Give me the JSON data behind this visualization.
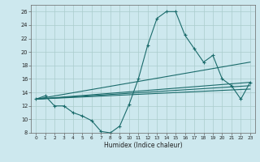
{
  "xlabel": "Humidex (Indice chaleur)",
  "xlim": [
    -0.5,
    23.5
  ],
  "ylim": [
    8,
    27
  ],
  "yticks": [
    8,
    10,
    12,
    14,
    16,
    18,
    20,
    22,
    24,
    26
  ],
  "xticks": [
    0,
    1,
    2,
    3,
    4,
    5,
    6,
    7,
    8,
    9,
    10,
    11,
    12,
    13,
    14,
    15,
    16,
    17,
    18,
    19,
    20,
    21,
    22,
    23
  ],
  "bg_color": "#cde8ee",
  "grid_color": "#aacccc",
  "line_color": "#1a6b6b",
  "line1_x": [
    0,
    1,
    2,
    3,
    4,
    5,
    6,
    7,
    8,
    9,
    10,
    11,
    12,
    13,
    14,
    15,
    16,
    17,
    18,
    19,
    20,
    21,
    22,
    23
  ],
  "line1_y": [
    13.0,
    13.5,
    12.0,
    12.0,
    11.0,
    10.5,
    9.8,
    8.2,
    8.0,
    9.0,
    12.2,
    16.0,
    21.0,
    25.0,
    26.0,
    26.0,
    22.5,
    20.5,
    18.5,
    19.5,
    16.0,
    15.0,
    13.0,
    15.5
  ],
  "line2_x": [
    0,
    23
  ],
  "line2_y": [
    13.0,
    18.5
  ],
  "line3_x": [
    0,
    23
  ],
  "line3_y": [
    13.0,
    15.5
  ],
  "line4_x": [
    0,
    23
  ],
  "line4_y": [
    13.0,
    15.0
  ],
  "line5_x": [
    0,
    23
  ],
  "line5_y": [
    13.0,
    14.5
  ]
}
